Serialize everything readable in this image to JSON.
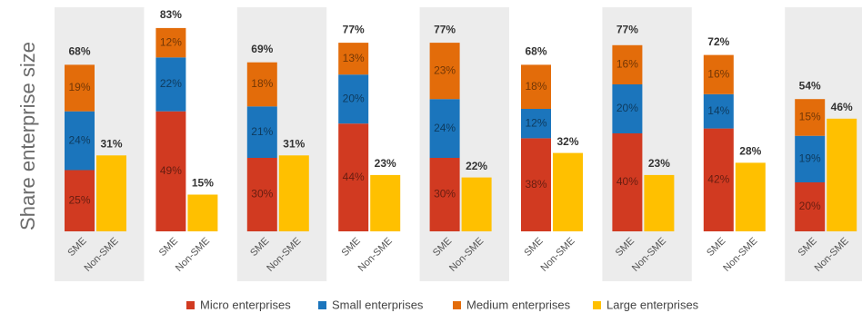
{
  "chart_data": {
    "type": "stacked_bar",
    "y_label": "Share enterprise size",
    "categories": [
      "SME",
      "Non-SME",
      "SME",
      "Non-SME",
      "SME",
      "Non-SME",
      "SME",
      "Non-SME",
      "SME",
      "Non-SME",
      "SME",
      "Non-SME",
      "SME",
      "Non-SME",
      "SME",
      "Non-SME",
      "SME",
      "Non-SME"
    ],
    "series": [
      {
        "name": "Micro enterprises",
        "color": "#d13a21",
        "values": [
          25,
          null,
          49,
          null,
          30,
          null,
          44,
          null,
          30,
          null,
          38,
          null,
          40,
          null,
          42,
          null,
          20,
          null
        ],
        "value_labels": [
          "25%",
          null,
          "49%",
          null,
          "30%",
          null,
          "44%",
          null,
          "30%",
          null,
          "38%",
          null,
          "40%",
          null,
          "42%",
          null,
          "20%",
          null
        ]
      },
      {
        "name": "Small enterprises",
        "color": "#1b75bc",
        "values": [
          24,
          null,
          22,
          null,
          21,
          null,
          20,
          null,
          24,
          null,
          12,
          null,
          20,
          null,
          14,
          null,
          19,
          null
        ],
        "value_labels": [
          "24%",
          null,
          "22%",
          null,
          "21%",
          null,
          "20%",
          null,
          "24%",
          null,
          "12%",
          null,
          "20%",
          null,
          "14%",
          null,
          "19%",
          null
        ]
      },
      {
        "name": "Medium enterprises",
        "color": "#e36c0a",
        "values": [
          19,
          null,
          12,
          null,
          18,
          null,
          13,
          null,
          23,
          null,
          18,
          null,
          16,
          null,
          16,
          null,
          15,
          null
        ],
        "value_labels": [
          "19%",
          null,
          "12%",
          null,
          "18%",
          null,
          "13%",
          null,
          "23%",
          null,
          "18%",
          null,
          "16%",
          null,
          "16%",
          null,
          "15%",
          null
        ]
      },
      {
        "name": "Large enterprises",
        "color": "#ffc000",
        "values": [
          null,
          31,
          null,
          15,
          null,
          31,
          null,
          23,
          null,
          22,
          null,
          32,
          null,
          23,
          null,
          28,
          null,
          46
        ],
        "value_labels": [
          null,
          "31%",
          null,
          "15%",
          null,
          "31%",
          null,
          "23%",
          null,
          "22%",
          null,
          "32%",
          null,
          "23%",
          null,
          "28%",
          null,
          "46%"
        ]
      }
    ],
    "totals": [
      68,
      null,
      83,
      null,
      69,
      null,
      77,
      null,
      77,
      null,
      68,
      null,
      77,
      null,
      72,
      null,
      54,
      null
    ],
    "totals_labels": [
      "68%",
      null,
      "83%",
      null,
      "69%",
      null,
      "77%",
      null,
      "77%",
      null,
      "68%",
      null,
      "77%",
      null,
      "72%",
      null,
      "54%",
      null
    ],
    "ylim": [
      0,
      90
    ]
  }
}
